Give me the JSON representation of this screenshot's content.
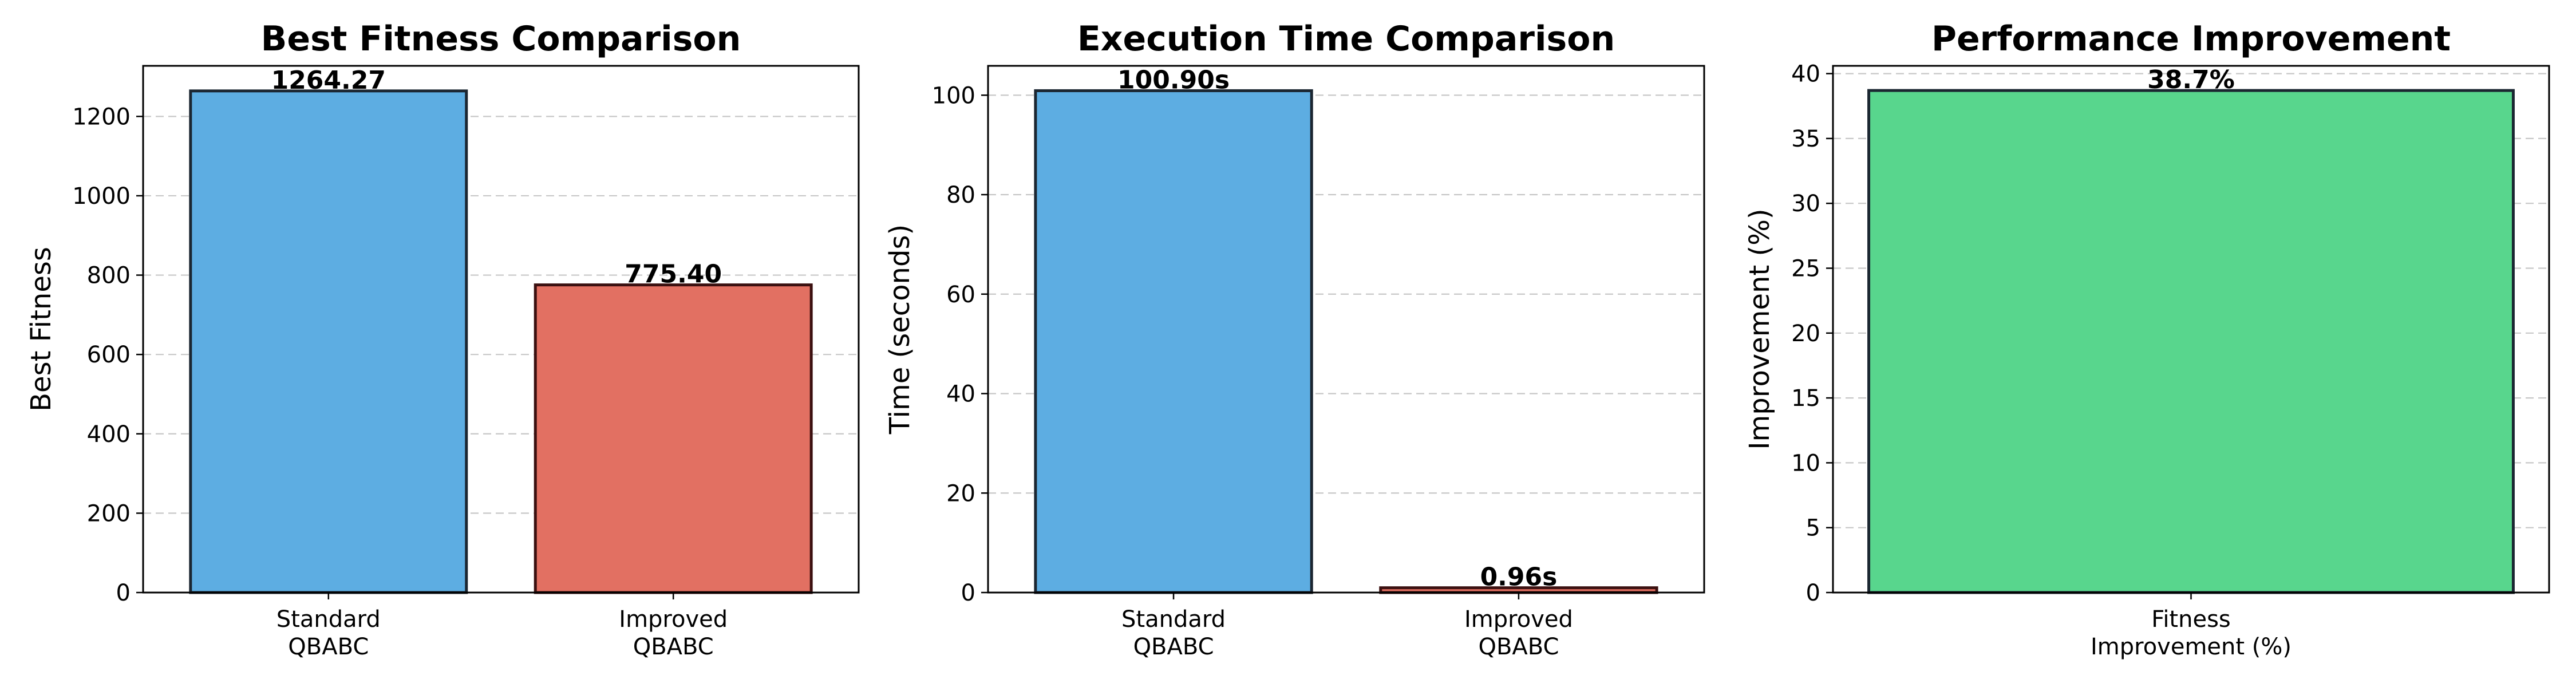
{
  "chart_data": [
    {
      "type": "bar",
      "title": "Best Fitness Comparison",
      "xlabel": "",
      "ylabel": "Best Fitness",
      "categories": [
        [
          "Standard",
          "QBABC"
        ],
        [
          "Improved",
          "QBABC"
        ]
      ],
      "values": [
        1264.27,
        775.4
      ],
      "value_labels": [
        "1264.27",
        "775.40"
      ],
      "colors": [
        "#5dade2",
        "#e27062"
      ],
      "edge_colors": [
        "#1b2631",
        "#3b1010"
      ],
      "ylim": [
        0,
        1327.48
      ],
      "yticks": [
        0,
        200,
        400,
        600,
        800,
        1000,
        1200
      ],
      "grid": true
    },
    {
      "type": "bar",
      "title": "Execution Time Comparison",
      "xlabel": "",
      "ylabel": "Time (seconds)",
      "categories": [
        [
          "Standard",
          "QBABC"
        ],
        [
          "Improved",
          "QBABC"
        ]
      ],
      "values": [
        100.9,
        0.96
      ],
      "value_labels": [
        "100.90s",
        "0.96s"
      ],
      "colors": [
        "#5dade2",
        "#e27062"
      ],
      "edge_colors": [
        "#1b2631",
        "#3b1010"
      ],
      "ylim": [
        0,
        105.9
      ],
      "yticks": [
        0,
        20,
        40,
        60,
        80,
        100
      ],
      "grid": true
    },
    {
      "type": "bar",
      "title": "Performance Improvement",
      "xlabel": "",
      "ylabel": "Improvement (%)",
      "categories": [
        [
          "Fitness",
          "Improvement (%)"
        ]
      ],
      "values": [
        38.7
      ],
      "value_labels": [
        "38.7%"
      ],
      "colors": [
        "#58d68d"
      ],
      "edge_colors": [
        "#1b2631"
      ],
      "ylim": [
        0,
        40.6
      ],
      "yticks": [
        0,
        5,
        10,
        15,
        20,
        25,
        30,
        35,
        40
      ],
      "grid": true
    }
  ]
}
